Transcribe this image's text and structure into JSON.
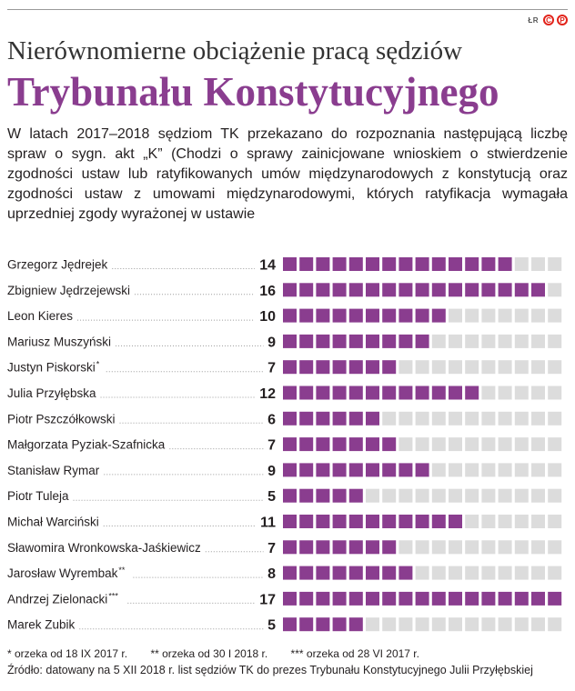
{
  "header": {
    "logo_text": "ŁR",
    "logo_c": "C",
    "logo_p": "P",
    "title_line1": "Nierównomierne obciążenie pracą sędziów",
    "title_line2": "Trybunału Konstytucyjnego",
    "intro": "W latach 2017–2018 sędziom TK przekazano do rozpoznania następującą liczbę spraw o sygn. akt „K” (Chodzi o sprawy zainicjowane wnioskiem o stwierdzenie zgodności ustaw lub ratyfikowanych umów międzynarodowych z konstytucją oraz zgodności ustaw z umowami międzynarodowymi, których ratyfikacja wymagała uprzedniej zgody wyrażonej w ustawie"
  },
  "footer": {
    "note1": "* orzeka od 18 IX 2017 r.",
    "note2": "** orzeka od 30 I 2018 r.",
    "note3": "*** orzeka od 28 VI 2017 r.",
    "source": "Źródło: datowany na 5 XII 2018 r. list sędziów TK do prezes Trybunału Konstytucyjnego Julii Przyłębskiej"
  },
  "colors": {
    "filled": "#8a3d8f",
    "empty": "#dcdcdc",
    "title_accent": "#8a3d8f",
    "logo_red": "#e2231a"
  },
  "chart_data": {
    "type": "bar",
    "encoding": "unit squares, one square per case; 17 squares per row",
    "max_units": 17,
    "categories": [
      "Grzegorz Jędrejek",
      "Zbigniew Jędrzejewski",
      "Leon Kieres",
      "Mariusz Muszyński",
      "Justyn Piskorski",
      "Julia Przyłębska",
      "Piotr Pszczółkowski",
      "Małgorzata Pyziak-Szafnicka",
      "Stanisław Rymar",
      "Piotr Tuleja",
      "Michał Warciński",
      "Sławomira Wronkowska-Jaśkiewicz",
      "Jarosław Wyrembak",
      "Andrzej Zielonacki",
      "Marek Zubik"
    ],
    "markers": [
      "",
      "",
      "",
      "",
      "*",
      "",
      "",
      "",
      "",
      "",
      "",
      "",
      "**",
      "***",
      ""
    ],
    "values": [
      14,
      16,
      10,
      9,
      7,
      12,
      6,
      7,
      9,
      5,
      11,
      7,
      8,
      17,
      5
    ]
  }
}
